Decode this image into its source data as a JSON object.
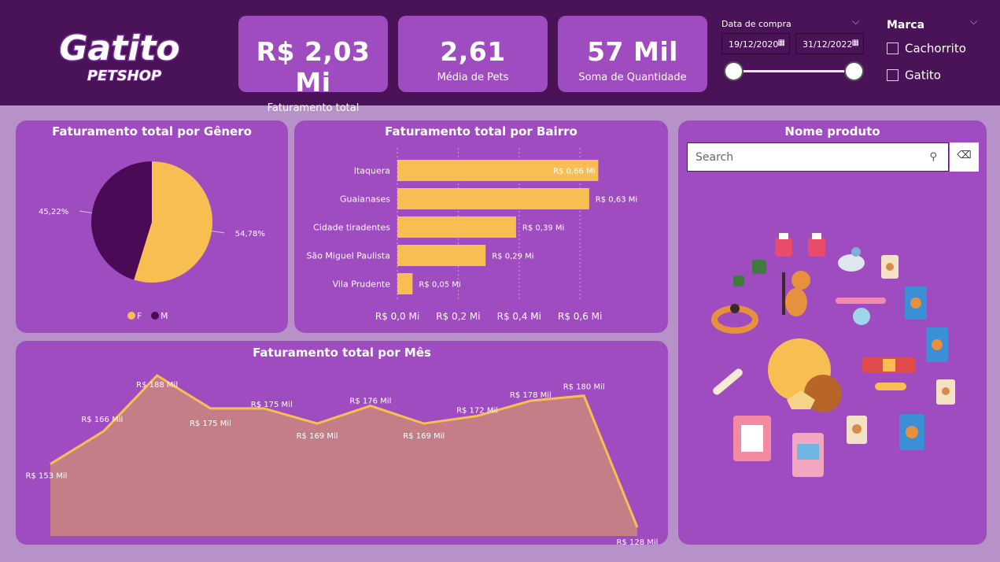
{
  "brand": {
    "logo_main": "Gatito",
    "logo_sub": "PETSHOP"
  },
  "kpis": [
    {
      "value": "R$ 2,03 Mi",
      "label": "Faturamento total"
    },
    {
      "value": "2,61",
      "label": "Média de Pets"
    },
    {
      "value": "57 Mil",
      "label": "Soma de Quantidade"
    }
  ],
  "date_slicer": {
    "title": "Data de compra",
    "start": "19/12/2020",
    "end": "31/12/2022",
    "range_fraction": [
      0,
      1
    ]
  },
  "brand_slicer": {
    "title": "Marca",
    "options": [
      {
        "label": "Cachorrito",
        "checked": false
      },
      {
        "label": "Gatito",
        "checked": false
      }
    ]
  },
  "product_slicer": {
    "title": "Nome produto",
    "search_placeholder": "Search"
  },
  "colors": {
    "topbar": "#4a1257",
    "card": "#9e4cbf",
    "background": "#b692c9",
    "accent": "#f9be52",
    "dark_series": "#4a0a55",
    "area_fill": "#c57d88"
  },
  "chart_data": [
    {
      "type": "pie",
      "title": "Faturamento total por Gênero",
      "categories": [
        "F",
        "M"
      ],
      "values": [
        54.78,
        45.22
      ],
      "labels": [
        "54,78%",
        "45,22%"
      ],
      "colors": [
        "#f9be52",
        "#4a0a55"
      ],
      "legend": "bottom-center"
    },
    {
      "type": "bar",
      "orientation": "horizontal",
      "title": "Faturamento total por Bairro",
      "categories": [
        "Itaquera",
        "Guaianases",
        "Cidade tiradentes",
        "São Miguel Paulista",
        "Vila Prudente"
      ],
      "values": [
        0.66,
        0.63,
        0.39,
        0.29,
        0.05
      ],
      "data_labels": [
        "R$ 0,66 Mi",
        "R$ 0,63 Mi",
        "R$ 0,39 Mi",
        "R$ 0,29 Mi",
        "R$ 0,05 Mi"
      ],
      "xticks": [
        0,
        0.2,
        0.4,
        0.6
      ],
      "xtick_labels": [
        "R$ 0,0 Mi",
        "R$ 0,2 Mi",
        "R$ 0,4 Mi",
        "R$ 0,6 Mi"
      ],
      "xlim": [
        0,
        0.72
      ],
      "grid": true
    },
    {
      "type": "area",
      "title": "Faturamento total por Mês",
      "x": [
        1,
        2,
        3,
        4,
        5,
        6,
        7,
        8,
        9,
        10,
        11,
        12
      ],
      "values": [
        153,
        166,
        188,
        175,
        175,
        169,
        176,
        169,
        172,
        178,
        180,
        128
      ],
      "data_labels": [
        "R$ 153 Mil",
        "R$ 166 Mil",
        "R$ 188 Mil",
        "R$ 175 Mil",
        "R$ 175 Mil",
        "R$ 169 Mil",
        "R$ 176 Mil",
        "R$ 169 Mil",
        "R$ 172 Mil",
        "R$ 178 Mil",
        "R$ 180 Mil",
        "R$ 128 Mil"
      ],
      "ylim": [
        100,
        195
      ]
    }
  ]
}
